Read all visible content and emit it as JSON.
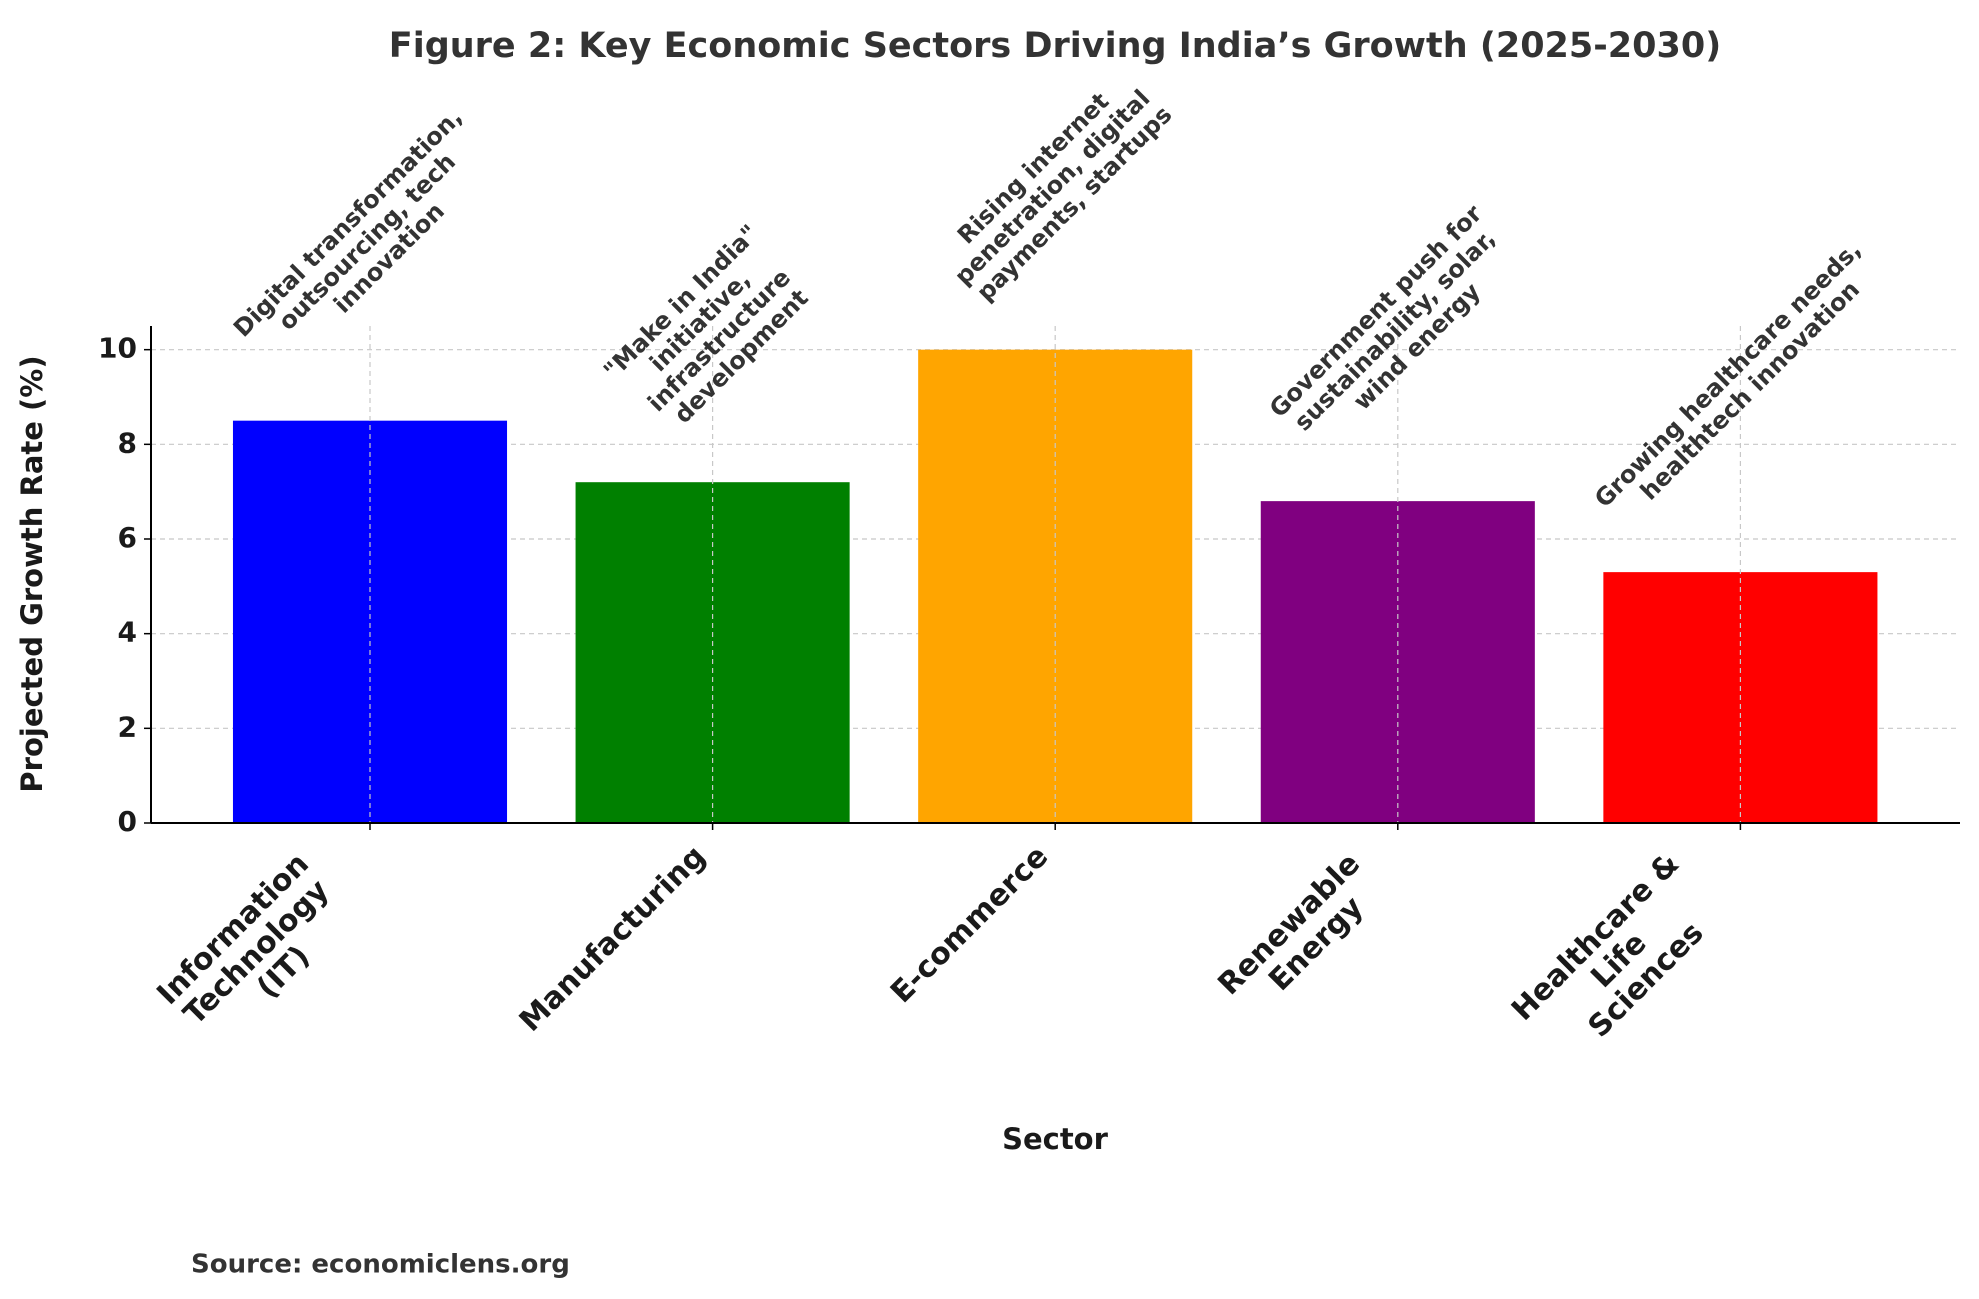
{
  "chart_data": {
    "type": "bar",
    "title": "Figure 2: Key Economic Sectors Driving India’s Growth (2025-2030)",
    "x_label": "Sector",
    "y_label": "Projected Growth Rate (%)",
    "source": "Source: economiclens.org",
    "categories": [
      "Information\nTechnology\n(IT)",
      "Manufacturing",
      "E-commerce",
      "Renewable\nEnergy",
      "Healthcare &\nLife\nSciences"
    ],
    "values": [
      8.5,
      7.2,
      10,
      6.8,
      5.3
    ],
    "colors": [
      "#0000ff",
      "#008000",
      "#ffa500",
      "#800080",
      "#ff0000"
    ],
    "annotations": [
      "Digital transformation,\noutsourcing, tech\ninnovation",
      "\"Make in India\"\ninitiative,\ninfrastructure\ndevelopment",
      "Rising internet\npenetration, digital\npayments, startups",
      "Government push for\nsustainability, solar,\nwind energy",
      "Growing healthcare needs,\nhealthtech innovation"
    ],
    "ylim": [
      0,
      10.5
    ],
    "yticks": [
      0,
      2,
      4,
      6,
      8,
      10
    ],
    "grid": true
  }
}
